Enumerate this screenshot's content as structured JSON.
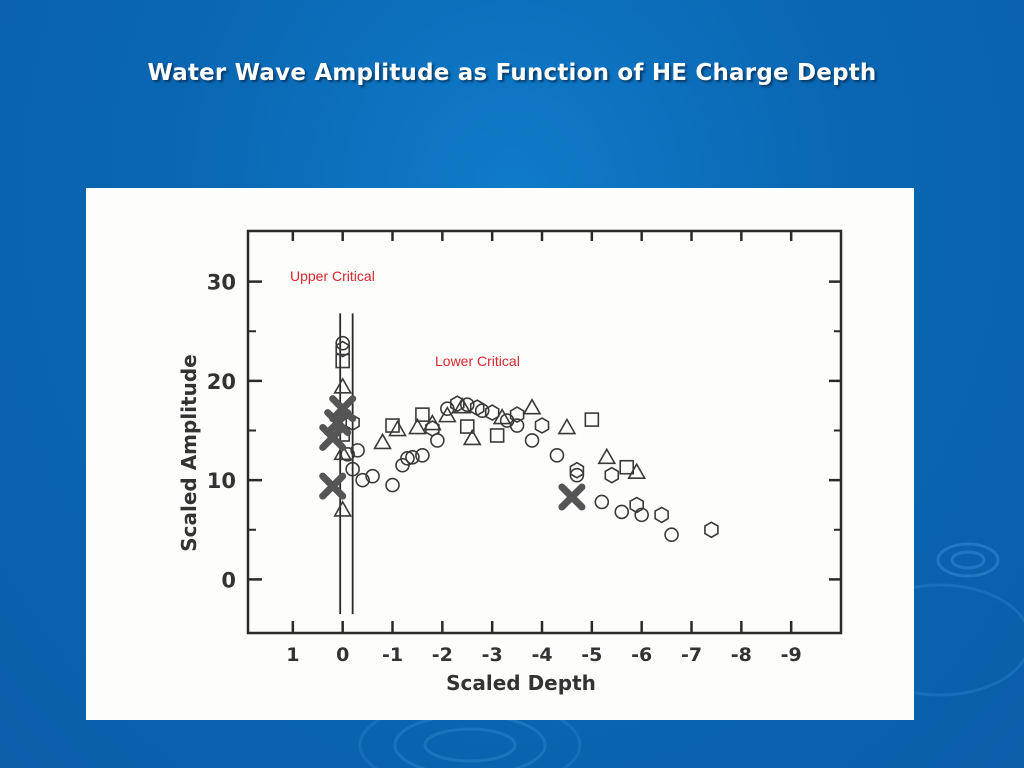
{
  "slide": {
    "title": "Water Wave Amplitude as Function of HE Charge Depth",
    "title_color": "#ffffff",
    "background_color": "#0a67b3"
  },
  "annotations": {
    "upper_critical": "Upper Critical",
    "lower_critical": "Lower Critical",
    "color": "#d8262e"
  },
  "chart_data": {
    "type": "scatter",
    "xlabel": "Scaled Depth",
    "ylabel": "Scaled Amplitude",
    "x_ticks": [
      {
        "value": 1,
        "label": "1"
      },
      {
        "value": 0,
        "label": "0"
      },
      {
        "value": -1,
        "label": "-1"
      },
      {
        "value": -2,
        "label": "-2"
      },
      {
        "value": -3,
        "label": "-3"
      },
      {
        "value": -4,
        "label": "-4"
      },
      {
        "value": -5,
        "label": "-5"
      },
      {
        "value": -6,
        "label": "-6"
      },
      {
        "value": -7,
        "label": "-7"
      },
      {
        "value": -8,
        "label": "-8"
      },
      {
        "value": -9,
        "label": "-9"
      }
    ],
    "y_ticks": [
      {
        "value": 0,
        "label": "0"
      },
      {
        "value": 10,
        "label": "10"
      },
      {
        "value": 20,
        "label": "20"
      },
      {
        "value": 30,
        "label": "30"
      }
    ],
    "xlim": [
      1.9,
      -10.0
    ],
    "ylim": [
      -5.4,
      35.1
    ],
    "grid": false,
    "critical_lines_x": [
      0.05,
      -0.2
    ],
    "series": [
      {
        "marker": "circle",
        "points": [
          [
            0.0,
            23.8
          ],
          [
            -0.1,
            12.6
          ],
          [
            -0.2,
            11.1
          ],
          [
            -0.3,
            13.0
          ],
          [
            -0.4,
            10.0
          ],
          [
            -0.6,
            10.4
          ],
          [
            -1.0,
            9.5
          ],
          [
            -1.2,
            11.5
          ],
          [
            -1.3,
            12.2
          ],
          [
            -1.4,
            12.3
          ],
          [
            -1.6,
            12.5
          ],
          [
            -1.9,
            14.0
          ],
          [
            -2.1,
            17.2
          ],
          [
            -2.5,
            17.6
          ],
          [
            -2.8,
            17.0
          ],
          [
            -3.3,
            16.0
          ],
          [
            -3.5,
            15.5
          ],
          [
            -3.8,
            14.0
          ],
          [
            -4.3,
            12.5
          ],
          [
            -4.7,
            10.5
          ],
          [
            -5.2,
            7.8
          ],
          [
            -5.6,
            6.8
          ],
          [
            -6.0,
            6.5
          ],
          [
            -6.6,
            4.5
          ]
        ]
      },
      {
        "marker": "triangle",
        "points": [
          [
            0.0,
            19.4
          ],
          [
            0.0,
            12.7
          ],
          [
            0.0,
            7.0
          ],
          [
            -0.8,
            13.8
          ],
          [
            -1.1,
            15.1
          ],
          [
            -1.5,
            15.3
          ],
          [
            -1.8,
            15.7
          ],
          [
            -2.1,
            16.5
          ],
          [
            -2.4,
            17.4
          ],
          [
            -2.6,
            14.2
          ],
          [
            -3.2,
            16.3
          ],
          [
            -3.8,
            17.3
          ],
          [
            -4.5,
            15.3
          ],
          [
            -5.3,
            12.3
          ],
          [
            -5.9,
            10.8
          ]
        ]
      },
      {
        "marker": "square",
        "points": [
          [
            0.0,
            22.0
          ],
          [
            0.0,
            14.6
          ],
          [
            -1.0,
            15.5
          ],
          [
            -1.6,
            16.6
          ],
          [
            -2.5,
            15.4
          ],
          [
            -3.1,
            14.5
          ],
          [
            -5.0,
            16.1
          ],
          [
            -5.7,
            11.3
          ]
        ]
      },
      {
        "marker": "hexagon",
        "points": [
          [
            0.0,
            23.2
          ],
          [
            -0.2,
            15.8
          ],
          [
            -1.8,
            15.2
          ],
          [
            -2.3,
            17.7
          ],
          [
            -2.7,
            17.3
          ],
          [
            -3.0,
            16.8
          ],
          [
            -3.5,
            16.6
          ],
          [
            -4.0,
            15.5
          ],
          [
            -4.7,
            11.0
          ],
          [
            -5.4,
            10.5
          ],
          [
            -5.9,
            7.5
          ],
          [
            -6.4,
            6.5
          ],
          [
            -7.4,
            5.0
          ]
        ]
      },
      {
        "marker": "cross",
        "points": [
          [
            0.0,
            17.2
          ],
          [
            0.1,
            15.8
          ],
          [
            0.2,
            14.3
          ],
          [
            0.2,
            9.4
          ],
          [
            -4.6,
            8.3
          ]
        ]
      }
    ]
  }
}
